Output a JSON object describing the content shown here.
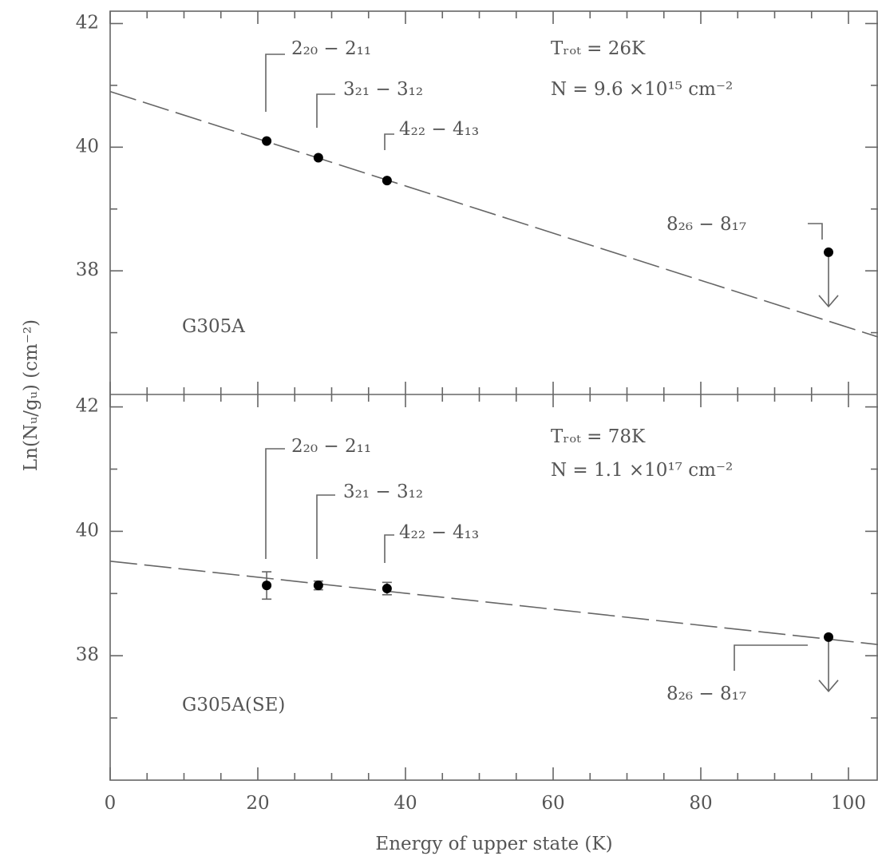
{
  "chart_data": [
    {
      "type": "scatter",
      "panel_label": "G305A",
      "annotations": [
        "Tᵣₒₜ = 26K",
        "N = 9.6 ×10¹⁵ cm⁻²"
      ],
      "point_labels": [
        "2₂₀ − 2₁₁",
        "3₂₁ − 3₁₂",
        "4₂₂ − 4₁₃",
        "8₂₆ − 8₁₇"
      ],
      "x": [
        21.2,
        28.2,
        37.5,
        97.3
      ],
      "values": [
        40.1,
        39.83,
        39.46,
        38.3
      ],
      "upper_limit": [
        false,
        false,
        false,
        true
      ],
      "fit": {
        "x": [
          0,
          104
        ],
        "values": [
          40.9,
          36.93
        ]
      },
      "xlim": [
        0,
        104
      ],
      "ylim": [
        36,
        42.2
      ],
      "xtick_marks": [
        0,
        5,
        10,
        15,
        20,
        25,
        30,
        35,
        40,
        45,
        50,
        55,
        60,
        65,
        70,
        75,
        80,
        85,
        90,
        95,
        100
      ],
      "yticks": [
        38,
        40,
        42
      ],
      "yticks_minor": [
        37,
        39,
        41
      ]
    },
    {
      "type": "scatter",
      "panel_label": "G305A(SE)",
      "annotations": [
        "Tᵣₒₜ = 78K",
        "N = 1.1 ×10¹⁷ cm⁻²"
      ],
      "point_labels": [
        "2₂₀ − 2₁₁",
        "3₂₁ − 3₁₂",
        "4₂₂ − 4₁₃",
        "8₂₆ − 8₁₇"
      ],
      "x": [
        21.2,
        28.2,
        37.5,
        97.3
      ],
      "values": [
        39.13,
        39.13,
        39.08,
        38.3
      ],
      "errors": [
        0.22,
        0.07,
        0.1,
        null
      ],
      "upper_limit": [
        false,
        false,
        false,
        true
      ],
      "fit": {
        "x": [
          0,
          104
        ],
        "values": [
          39.52,
          38.18
        ]
      },
      "xlim": [
        0,
        104
      ],
      "ylim": [
        36,
        42.2
      ],
      "xticks": [
        0,
        20,
        40,
        60,
        80,
        100
      ],
      "xticks_minor": [
        5,
        10,
        15,
        25,
        30,
        35,
        45,
        50,
        55,
        65,
        70,
        75,
        85,
        90,
        95
      ],
      "yticks": [
        38,
        40,
        42
      ],
      "yticks_minor": [
        37,
        39,
        41
      ],
      "xlabel": "Energy of upper state (K)",
      "ylabel": "Ln(Nᵤ/gᵤ) (cm⁻²)"
    }
  ]
}
